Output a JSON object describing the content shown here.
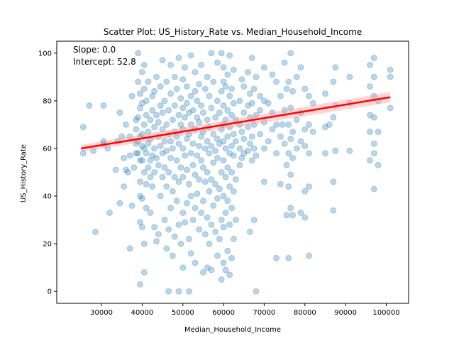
{
  "chart_data": {
    "type": "scatter",
    "title": "Scatter Plot: US_History_Rate vs. Median_Household_Income",
    "xlabel": "Median_Household_Income",
    "ylabel": "US_History_Rate",
    "xlim": [
      19000,
      105500
    ],
    "ylim": [
      -5,
      105
    ],
    "xticks": [
      30000,
      40000,
      50000,
      60000,
      70000,
      80000,
      90000,
      100000
    ],
    "xtick_labels": [
      "30000",
      "40000",
      "50000",
      "60000",
      "70000",
      "80000",
      "90000",
      "100000"
    ],
    "yticks": [
      0,
      20,
      40,
      60,
      80,
      100
    ],
    "ytick_labels": [
      "0",
      "20",
      "40",
      "60",
      "80",
      "100"
    ],
    "grid": false,
    "annotations": [
      {
        "text": "Slope: 0.0"
      },
      {
        "text": "Intercept: 52.8"
      }
    ],
    "point_color": "#1f77b4",
    "point_opacity": 0.3,
    "regression": {
      "color": "#ff0000",
      "band_color": "#ff9999",
      "x": [
        25000,
        101000
      ],
      "y": [
        60.0,
        81.5
      ],
      "band_halfwidth": [
        1.5,
        2.2
      ]
    },
    "points": [
      [
        25500,
        58
      ],
      [
        25500,
        69
      ],
      [
        27000,
        78
      ],
      [
        28000,
        59
      ],
      [
        28500,
        25
      ],
      [
        30500,
        78
      ],
      [
        30500,
        63
      ],
      [
        30500,
        62
      ],
      [
        31500,
        60
      ],
      [
        32000,
        33
      ],
      [
        33500,
        51
      ],
      [
        34000,
        63
      ],
      [
        34500,
        37
      ],
      [
        34500,
        75
      ],
      [
        35000,
        65
      ],
      [
        35500,
        44
      ],
      [
        35500,
        56
      ],
      [
        36000,
        51
      ],
      [
        36000,
        70
      ],
      [
        36500,
        50
      ],
      [
        37000,
        18
      ],
      [
        37000,
        65
      ],
      [
        37000,
        57
      ],
      [
        37500,
        82
      ],
      [
        37500,
        36
      ],
      [
        38000,
        52
      ],
      [
        38500,
        58
      ],
      [
        38500,
        62
      ],
      [
        38500,
        68
      ],
      [
        38500,
        72
      ],
      [
        39000,
        100
      ],
      [
        39000,
        63
      ],
      [
        39000,
        73
      ],
      [
        39000,
        88
      ],
      [
        39000,
        58
      ],
      [
        39500,
        3
      ],
      [
        39500,
        29
      ],
      [
        39500,
        40
      ],
      [
        39500,
        46
      ],
      [
        39500,
        55
      ],
      [
        39500,
        65
      ],
      [
        39500,
        77
      ],
      [
        39500,
        83
      ],
      [
        40000,
        55
      ],
      [
        40000,
        61
      ],
      [
        40000,
        66
      ],
      [
        40000,
        79
      ],
      [
        40000,
        92
      ],
      [
        40000,
        27
      ],
      [
        40000,
        39
      ],
      [
        40500,
        8
      ],
      [
        40500,
        20
      ],
      [
        40500,
        50
      ],
      [
        40500,
        60
      ],
      [
        40500,
        70
      ],
      [
        40500,
        85
      ],
      [
        40500,
        95
      ],
      [
        41000,
        35
      ],
      [
        41000,
        45
      ],
      [
        41000,
        58
      ],
      [
        41000,
        74
      ],
      [
        41000,
        80
      ],
      [
        41500,
        52
      ],
      [
        41500,
        67
      ],
      [
        41500,
        88
      ],
      [
        41500,
        62
      ],
      [
        42000,
        48
      ],
      [
        42000,
        55
      ],
      [
        42000,
        64
      ],
      [
        42000,
        72
      ],
      [
        42000,
        33
      ],
      [
        42500,
        57
      ],
      [
        42500,
        76
      ],
      [
        42500,
        82
      ],
      [
        42500,
        44
      ],
      [
        43000,
        27
      ],
      [
        43000,
        50
      ],
      [
        43000,
        60
      ],
      [
        43000,
        69
      ],
      [
        43000,
        84
      ],
      [
        43500,
        21
      ],
      [
        43500,
        56
      ],
      [
        43500,
        74
      ],
      [
        43500,
        90
      ],
      [
        44000,
        53
      ],
      [
        44000,
        65
      ],
      [
        44000,
        71
      ],
      [
        44000,
        24
      ],
      [
        44500,
        40
      ],
      [
        44500,
        61
      ],
      [
        44500,
        78
      ],
      [
        44500,
        86
      ],
      [
        45000,
        48
      ],
      [
        45000,
        58
      ],
      [
        45000,
        68
      ],
      [
        45000,
        75
      ],
      [
        45000,
        97
      ],
      [
        45500,
        30
      ],
      [
        45500,
        52
      ],
      [
        45500,
        63
      ],
      [
        45500,
        80
      ],
      [
        46000,
        18
      ],
      [
        46000,
        44
      ],
      [
        46000,
        59
      ],
      [
        46000,
        70
      ],
      [
        46000,
        88
      ],
      [
        46500,
        0
      ],
      [
        46500,
        26
      ],
      [
        46500,
        50
      ],
      [
        46500,
        66
      ],
      [
        46500,
        76
      ],
      [
        47000,
        35
      ],
      [
        47000,
        56
      ],
      [
        47000,
        63
      ],
      [
        47000,
        83
      ],
      [
        47000,
        95
      ],
      [
        47500,
        15
      ],
      [
        47500,
        42
      ],
      [
        47500,
        60
      ],
      [
        47500,
        72
      ],
      [
        48000,
        23
      ],
      [
        48000,
        48
      ],
      [
        48000,
        67
      ],
      [
        48000,
        78
      ],
      [
        48000,
        90
      ],
      [
        48500,
        38
      ],
      [
        48500,
        55
      ],
      [
        48500,
        65
      ],
      [
        48500,
        85
      ],
      [
        49000,
        0
      ],
      [
        49000,
        28
      ],
      [
        49000,
        46
      ],
      [
        49000,
        62
      ],
      [
        49000,
        74
      ],
      [
        49000,
        98
      ],
      [
        49500,
        20
      ],
      [
        49500,
        52
      ],
      [
        49500,
        70
      ],
      [
        49500,
        81
      ],
      [
        50000,
        10
      ],
      [
        50000,
        33
      ],
      [
        50000,
        48
      ],
      [
        50000,
        60
      ],
      [
        50000,
        68
      ],
      [
        50000,
        77
      ],
      [
        50000,
        89
      ],
      [
        50500,
        29
      ],
      [
        50500,
        57
      ],
      [
        50500,
        73
      ],
      [
        50500,
        94
      ],
      [
        51000,
        37
      ],
      [
        51000,
        51
      ],
      [
        51000,
        64
      ],
      [
        51000,
        79
      ],
      [
        51000,
        86
      ],
      [
        51500,
        0
      ],
      [
        51500,
        22
      ],
      [
        51500,
        45
      ],
      [
        51500,
        66
      ],
      [
        51500,
        75
      ],
      [
        52000,
        16
      ],
      [
        52000,
        40
      ],
      [
        52000,
        58
      ],
      [
        52000,
        70
      ],
      [
        52000,
        82
      ],
      [
        52000,
        99
      ],
      [
        52500,
        30
      ],
      [
        52500,
        53
      ],
      [
        52500,
        62
      ],
      [
        52500,
        76
      ],
      [
        53000,
        12
      ],
      [
        53000,
        35
      ],
      [
        53000,
        49
      ],
      [
        53000,
        68
      ],
      [
        53000,
        84
      ],
      [
        53000,
        92
      ],
      [
        53500,
        41
      ],
      [
        53500,
        57
      ],
      [
        53500,
        73
      ],
      [
        53500,
        80
      ],
      [
        54000,
        26
      ],
      [
        54000,
        47
      ],
      [
        54000,
        61
      ],
      [
        54000,
        71
      ],
      [
        54000,
        87
      ],
      [
        54500,
        33
      ],
      [
        54500,
        55
      ],
      [
        54500,
        65
      ],
      [
        54500,
        78
      ],
      [
        54500,
        95
      ],
      [
        55000,
        8
      ],
      [
        55000,
        38
      ],
      [
        55000,
        52
      ],
      [
        55000,
        67
      ],
      [
        55000,
        75
      ],
      [
        55500,
        24
      ],
      [
        55500,
        46
      ],
      [
        55500,
        60
      ],
      [
        55500,
        85
      ],
      [
        56000,
        10
      ],
      [
        56000,
        31
      ],
      [
        56000,
        50
      ],
      [
        56000,
        63
      ],
      [
        56000,
        72
      ],
      [
        56000,
        90
      ],
      [
        56500,
        20
      ],
      [
        56500,
        42
      ],
      [
        56500,
        58
      ],
      [
        56500,
        69
      ],
      [
        56500,
        82
      ],
      [
        57000,
        9
      ],
      [
        57000,
        28
      ],
      [
        57000,
        47
      ],
      [
        57000,
        61
      ],
      [
        57000,
        77
      ],
      [
        57000,
        100
      ],
      [
        57500,
        36
      ],
      [
        57500,
        54
      ],
      [
        57500,
        66
      ],
      [
        57500,
        88
      ],
      [
        58000,
        25
      ],
      [
        58000,
        45
      ],
      [
        58000,
        59
      ],
      [
        58000,
        73
      ],
      [
        58500,
        15
      ],
      [
        58500,
        39
      ],
      [
        58500,
        56
      ],
      [
        58500,
        64
      ],
      [
        58500,
        80
      ],
      [
        58500,
        96
      ],
      [
        59000,
        22
      ],
      [
        59000,
        43
      ],
      [
        59000,
        62
      ],
      [
        59000,
        75
      ],
      [
        59500,
        5
      ],
      [
        59500,
        30
      ],
      [
        59500,
        50
      ],
      [
        59500,
        68
      ],
      [
        59500,
        84
      ],
      [
        59500,
        100
      ],
      [
        60000,
        12
      ],
      [
        60000,
        27
      ],
      [
        60000,
        40
      ],
      [
        60000,
        55
      ],
      [
        60000,
        63
      ],
      [
        60000,
        70
      ],
      [
        60000,
        78
      ],
      [
        60000,
        88
      ],
      [
        60000,
        94
      ],
      [
        60500,
        9
      ],
      [
        60500,
        33
      ],
      [
        60500,
        48
      ],
      [
        60500,
        60
      ],
      [
        60500,
        72
      ],
      [
        60500,
        86
      ],
      [
        61000,
        17
      ],
      [
        61000,
        38
      ],
      [
        61000,
        52
      ],
      [
        61000,
        65
      ],
      [
        61000,
        76
      ],
      [
        61000,
        91
      ],
      [
        61500,
        7
      ],
      [
        61500,
        28
      ],
      [
        61500,
        44
      ],
      [
        61500,
        58
      ],
      [
        61500,
        69
      ],
      [
        61500,
        82
      ],
      [
        61500,
        99
      ],
      [
        62000,
        14
      ],
      [
        62000,
        35
      ],
      [
        62000,
        50
      ],
      [
        62000,
        61
      ],
      [
        62000,
        74
      ],
      [
        62000,
        85
      ],
      [
        62500,
        22
      ],
      [
        62500,
        42
      ],
      [
        62500,
        57
      ],
      [
        62500,
        66
      ],
      [
        62500,
        79
      ],
      [
        62500,
        93
      ],
      [
        63000,
        30
      ],
      [
        63000,
        47
      ],
      [
        63000,
        63
      ],
      [
        63000,
        72
      ],
      [
        64000,
        53
      ],
      [
        64000,
        60
      ],
      [
        64000,
        70
      ],
      [
        64000,
        80
      ],
      [
        64500,
        56
      ],
      [
        64500,
        67
      ],
      [
        64500,
        89
      ],
      [
        65000,
        58
      ],
      [
        65000,
        64
      ],
      [
        65000,
        75
      ],
      [
        65000,
        86
      ],
      [
        66000,
        59
      ],
      [
        66000,
        69
      ],
      [
        66000,
        78
      ],
      [
        66000,
        92
      ],
      [
        66500,
        25
      ],
      [
        66500,
        62
      ],
      [
        66500,
        73
      ],
      [
        66500,
        83
      ],
      [
        67000,
        55
      ],
      [
        67000,
        65
      ],
      [
        67000,
        79
      ],
      [
        67000,
        98
      ],
      [
        67500,
        30
      ],
      [
        67500,
        60
      ],
      [
        67500,
        70
      ],
      [
        67500,
        85
      ],
      [
        68000,
        0
      ],
      [
        68000,
        57
      ],
      [
        68000,
        74
      ],
      [
        68000,
        90
      ],
      [
        69000,
        66
      ],
      [
        69000,
        76
      ],
      [
        69000,
        82
      ],
      [
        70000,
        46
      ],
      [
        70000,
        60
      ],
      [
        70000,
        71
      ],
      [
        70000,
        80
      ],
      [
        70000,
        94
      ],
      [
        71000,
        63
      ],
      [
        71000,
        79
      ],
      [
        72000,
        68
      ],
      [
        72000,
        75
      ],
      [
        72000,
        91
      ],
      [
        73000,
        14
      ],
      [
        73000,
        58
      ],
      [
        73000,
        70
      ],
      [
        73000,
        88
      ],
      [
        74000,
        45
      ],
      [
        74000,
        65
      ],
      [
        74000,
        82
      ],
      [
        74500,
        70
      ],
      [
        75000,
        62
      ],
      [
        75000,
        76
      ],
      [
        75000,
        96
      ],
      [
        75500,
        32
      ],
      [
        75500,
        53
      ],
      [
        75500,
        85
      ],
      [
        76000,
        14
      ],
      [
        76000,
        44
      ],
      [
        76000,
        58
      ],
      [
        76000,
        70
      ],
      [
        76000,
        88
      ],
      [
        76500,
        35
      ],
      [
        76500,
        49
      ],
      [
        76500,
        64
      ],
      [
        76500,
        77
      ],
      [
        76500,
        100
      ],
      [
        77000,
        32
      ],
      [
        77000,
        56
      ],
      [
        77000,
        67
      ],
      [
        77000,
        84
      ],
      [
        78000,
        60
      ],
      [
        78000,
        72
      ],
      [
        78000,
        90
      ],
      [
        79000,
        33
      ],
      [
        79000,
        63
      ],
      [
        79000,
        75
      ],
      [
        79000,
        94
      ],
      [
        80000,
        31
      ],
      [
        80000,
        42
      ],
      [
        80000,
        61
      ],
      [
        80000,
        68
      ],
      [
        80000,
        85
      ],
      [
        81000,
        15
      ],
      [
        81000,
        44
      ],
      [
        81000,
        58
      ],
      [
        81000,
        70
      ],
      [
        81000,
        82
      ],
      [
        82000,
        67
      ],
      [
        82000,
        79
      ],
      [
        85000,
        58
      ],
      [
        85000,
        69
      ],
      [
        85000,
        83
      ],
      [
        86000,
        70
      ],
      [
        87000,
        46
      ],
      [
        87000,
        34
      ],
      [
        87000,
        73
      ],
      [
        87000,
        88
      ],
      [
        87500,
        59
      ],
      [
        87500,
        78
      ],
      [
        87500,
        94
      ],
      [
        91000,
        59
      ],
      [
        91000,
        79
      ],
      [
        91000,
        90
      ],
      [
        96000,
        55
      ],
      [
        96000,
        67
      ],
      [
        96000,
        74
      ],
      [
        96000,
        86
      ],
      [
        96000,
        95
      ],
      [
        97000,
        43
      ],
      [
        97000,
        58
      ],
      [
        97000,
        62
      ],
      [
        97000,
        73
      ],
      [
        97000,
        82
      ],
      [
        97000,
        90
      ],
      [
        97000,
        98
      ],
      [
        98000,
        53
      ],
      [
        98000,
        67
      ],
      [
        98000,
        80
      ],
      [
        101000,
        77
      ],
      [
        101000,
        90
      ],
      [
        101000,
        93
      ]
    ]
  }
}
